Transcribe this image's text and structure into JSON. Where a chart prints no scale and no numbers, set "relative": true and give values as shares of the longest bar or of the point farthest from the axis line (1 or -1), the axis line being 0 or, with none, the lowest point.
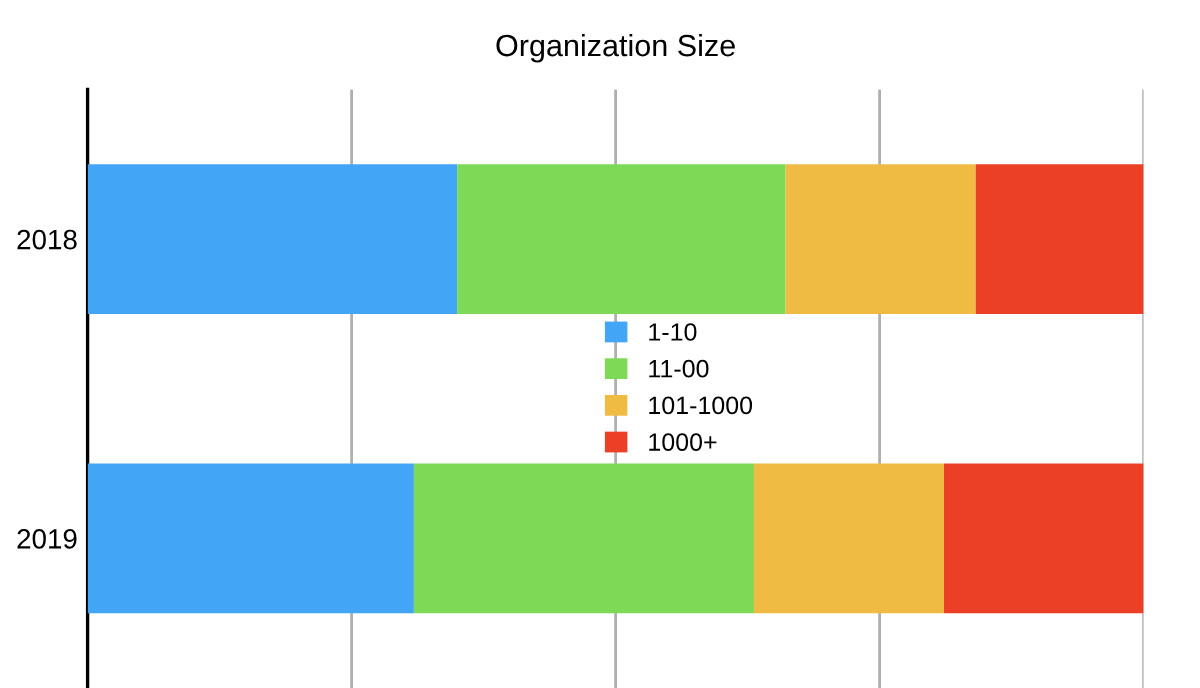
{
  "chart_data": {
    "type": "bar",
    "orientation": "horizontal",
    "stacked": true,
    "relative": true,
    "title": "Organization Size",
    "categories": [
      "2018",
      "2019"
    ],
    "series": [
      {
        "name": "1-10",
        "color": "#42a5f5",
        "values": [
          0.35,
          0.309
        ]
      },
      {
        "name": "11-00",
        "color": "#7ed957",
        "values": [
          0.311,
          0.322
        ]
      },
      {
        "name": "101-1000",
        "color": "#f0bb42",
        "values": [
          0.18,
          0.18
        ]
      },
      {
        "name": "1000+",
        "color": "#eb4025",
        "values": [
          0.159,
          0.189
        ]
      }
    ],
    "grid": "x",
    "legend": "center"
  }
}
